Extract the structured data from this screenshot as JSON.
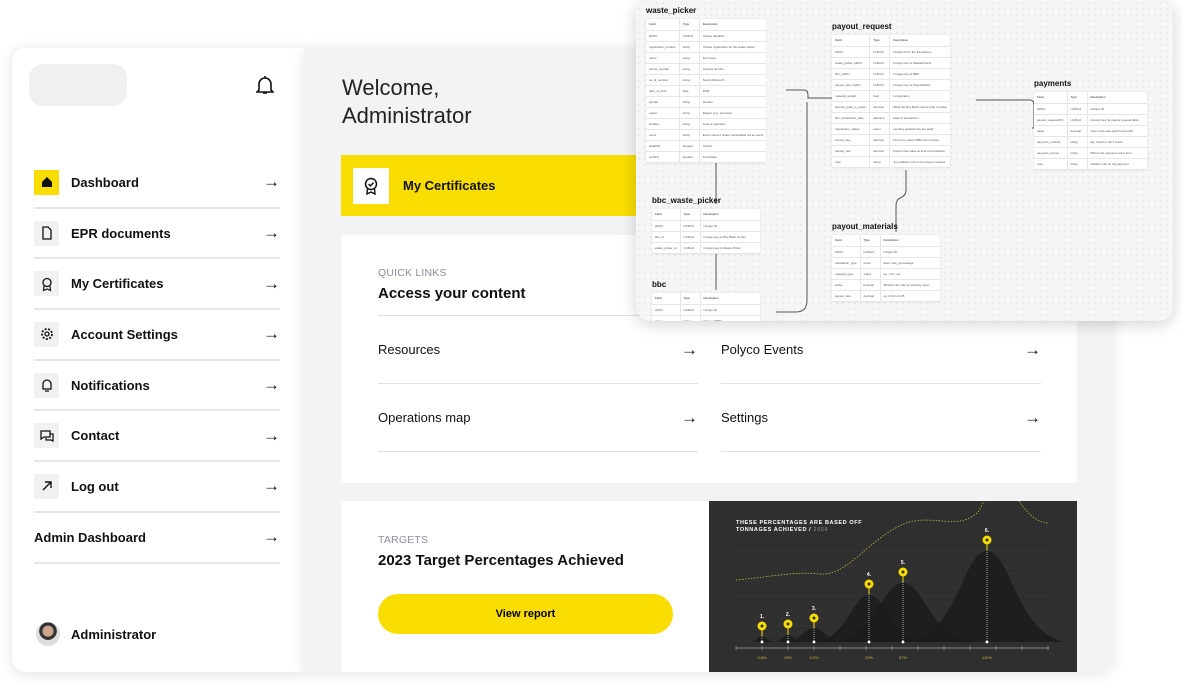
{
  "sidebar": {
    "items": [
      {
        "label": "Dashboard",
        "icon": "home-icon",
        "active": true
      },
      {
        "label": "EPR documents",
        "icon": "document-icon"
      },
      {
        "label": "My Certificates",
        "icon": "certificate-icon"
      },
      {
        "label": "Account Settings",
        "icon": "gear-icon"
      },
      {
        "label": "Notifications",
        "icon": "notification-icon"
      },
      {
        "label": "Contact",
        "icon": "chat-icon"
      },
      {
        "label": "Log out",
        "icon": "logout-arrow-icon"
      },
      {
        "label": "Admin Dashboard"
      }
    ],
    "user": "Administrator"
  },
  "main": {
    "welcome": "Welcome,",
    "welcome_name": "Administrator",
    "banner": "My Certificates",
    "quick_links": {
      "eyebrow": "QUICK LINKS",
      "title": "Access your content",
      "links": [
        "Resources",
        "Polyco Events",
        "Operations map",
        "Settings"
      ]
    },
    "targets": {
      "eyebrow": "TARGETS",
      "title": "2023 Target Percentages Achieved",
      "button": "View report"
    }
  },
  "colors": {
    "accent": "#f9dd00",
    "chart_bg": "#2f2f2f"
  },
  "chart_data": {
    "type": "area",
    "title": "THESE PERCENTAGES ARE BASED OFF",
    "subtitle": "TONNAGES ACHIEVED /",
    "year": "2024",
    "categories": [
      "1.",
      "2.",
      "3.",
      "4.",
      "5.",
      "6."
    ],
    "labels": [
      "0.8%",
      "15%",
      "5.3%",
      "29%",
      "57%",
      "112%"
    ],
    "values": [
      0.8,
      15,
      5.3,
      29,
      57,
      112
    ]
  },
  "diagram": {
    "tables": [
      {
        "name": "waste_picker",
        "rows": [
          [
            "Field",
            "Type",
            "Description"
          ],
          [
            "id(PK)",
            "UUIDv4",
            "Unique identifier"
          ],
          [
            "registration_number",
            "string",
            "Unique registration for the waste picker"
          ],
          [
            "name",
            "string",
            "Full name"
          ],
          [
            "phone_number",
            "string",
            "Contact number"
          ],
          [
            "sa_id_number",
            "string",
            "South African ID"
          ],
          [
            "date_of_birth",
            "date",
            "DOB"
          ],
          [
            "gender",
            "string",
            "Gender"
          ],
          [
            "region",
            "string",
            "Region (e.g. province)"
          ],
          [
            "location",
            "string",
            "Area of operation"
          ],
          [
            "event",
            "string",
            "Event name if picker participated via an event"
          ],
          [
            "disability",
            "boolean",
            "Yes/No"
          ],
          [
            "verified",
            "boolean",
            "True/False"
          ]
        ]
      },
      {
        "name": "payout_request",
        "rows": [
          [
            "Field",
            "Type",
            "Description"
          ],
          [
            "id(PK)",
            "UUIDv4",
            "Unique ID for the transaction"
          ],
          [
            "waste_picker_id(FK)",
            "UUIDv4",
            "Foreign key to WastePickers"
          ],
          [
            "bbc_id(FK)",
            "UUIDv4",
            "Foreign key to BBC"
          ],
          [
            "payout_rate_id(FK)",
            "UUIDv4",
            "Foreign key to PayoutRates"
          ],
          [
            "material_weight",
            "float",
            "In kilograms"
          ],
          [
            "amount_paid_to_picker",
            "decimal",
            "What the Buy Back Centre paid to picker"
          ],
          [
            "bbc_transaction_date",
            "datetime",
            "Date of transaction"
          ],
          [
            "transaction_status",
            "enum",
            "pending,paid(service fee paid)"
          ],
          [
            "service_fee",
            "decimal",
            "Fee to be paid to BBC from polyco"
          ],
          [
            "payout_rate",
            "decimal",
            "Payout rate value at time of transaction"
          ],
          [
            "note",
            "string",
            "Any addition info on the payout request"
          ]
        ]
      },
      {
        "name": "payments",
        "rows": [
          [
            "Field",
            "Type",
            "Description"
          ],
          [
            "id(PK)",
            "UUIDv4",
            "Unique ID"
          ],
          [
            "payout_request(FK)",
            "UUIDv4",
            "Foreign key for payout request table"
          ],
          [
            "value",
            "decimal",
            "How much was paid from/to API"
          ],
          [
            "payment_method",
            "string",
            "Eg. Voucher, EFT, Cash"
          ],
          [
            "payment_source",
            "string",
            "Where the payment came from"
          ],
          [
            "note",
            "string",
            "Addition info on the payment"
          ]
        ]
      },
      {
        "name": "bbc_waste_picker",
        "rows": [
          [
            "Field",
            "Type",
            "Description"
          ],
          [
            "id(PK)",
            "UUIDv4",
            "Unique ID"
          ],
          [
            "bbc_id",
            "UUIDv4",
            "Foreign key to Buy Back Center"
          ],
          [
            "waste_picker_id",
            "UUIDv4",
            "Foreign key to Waste Picker"
          ]
        ]
      },
      {
        "name": "bbc",
        "rows": [
          [
            "Field",
            "Type",
            "Description"
          ],
          [
            "id(PK)",
            "UUIDv4",
            "Unique ID"
          ],
          [
            "name",
            "string",
            "Name of BBC"
          ]
        ]
      },
      {
        "name": "payout_materials",
        "rows": [
          [
            "Field",
            "Type",
            "Description"
          ],
          [
            "id(PK)",
            "UUIDv4",
            "Unique ID"
          ],
          [
            "calculation_type",
            "enum",
            "fixed, rate_percentage"
          ],
          [
            "material_type",
            "string",
            "eg. \"pet\", etc"
          ],
          [
            "active",
            "boolean",
            "Whether the rate is currently used"
          ],
          [
            "payout_rate",
            "decimal",
            "eg. 0.01 to 0.05"
          ]
        ]
      }
    ]
  }
}
